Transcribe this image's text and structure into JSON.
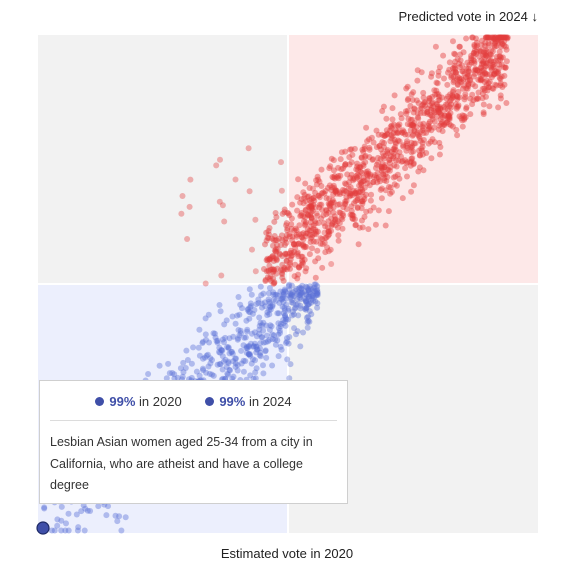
{
  "chart_data": {
    "type": "scatter",
    "xlabel": "Estimated vote in 2020",
    "ylabel": "Predicted vote in 2024",
    "ylabel_arrow": "↓",
    "xlim": [
      0,
      1
    ],
    "ylim": [
      0,
      1
    ],
    "quadrants": {
      "democratic_color": "#eceffd",
      "republican_color": "#fde8e8",
      "neutral_color": "#f2f2f2"
    },
    "point_colors": {
      "blue": "#5a6fd6",
      "red": "#e23b3b"
    },
    "series": [
      {
        "color": "blue",
        "note": "voters with under 50% predicted 2024 vote; spread from the bottom-left corner to the center"
      },
      {
        "color": "red",
        "note": "voters with over 50% predicted 2024 vote; dense band from the center to the top-right corner"
      }
    ],
    "highlighted_point": {
      "x": 0.01,
      "y": 0.01,
      "color": "#3f4fa8"
    }
  },
  "tooltip": {
    "stat_2020_value": "99%",
    "stat_2020_label": "in 2020",
    "stat_2024_value": "99%",
    "stat_2024_label": "in 2024",
    "description": "Lesbian Asian women aged 25-34 from a city in California, who are atheist and have a college degree"
  }
}
